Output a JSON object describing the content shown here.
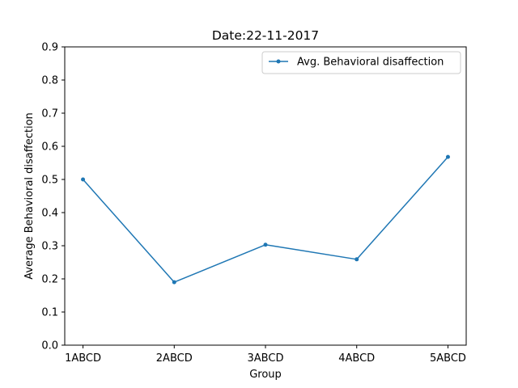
{
  "chart_data": {
    "type": "line",
    "title": "Date:22-11-2017",
    "xlabel": "Group",
    "ylabel": "Average Behavioral disaffection",
    "categories": [
      "1ABCD",
      "2ABCD",
      "3ABCD",
      "4ABCD",
      "5ABCD"
    ],
    "series": [
      {
        "name": "Avg. Behavioral disaffection",
        "values": [
          0.5,
          0.19,
          0.303,
          0.259,
          0.568
        ],
        "color": "#1f77b4"
      }
    ],
    "ylim": [
      0,
      0.9
    ],
    "yticks": [
      "0.0",
      "0.1",
      "0.2",
      "0.3",
      "0.4",
      "0.5",
      "0.6",
      "0.7",
      "0.8",
      "0.9"
    ],
    "grid": false,
    "legend_position": "top-right"
  }
}
